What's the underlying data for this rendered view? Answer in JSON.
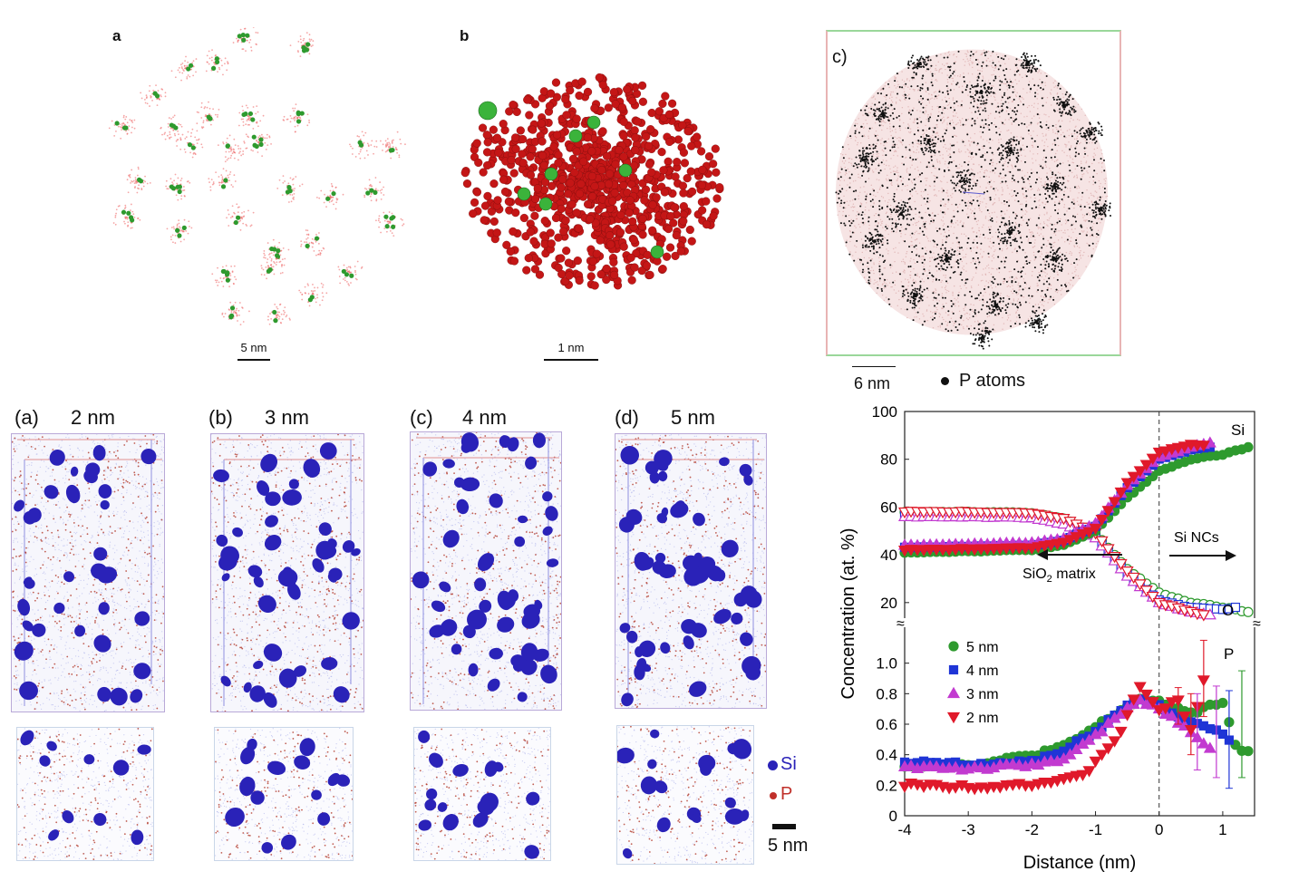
{
  "top_panels": {
    "a": {
      "letter": "a",
      "scale": "5 nm"
    },
    "b": {
      "letter": "b",
      "scale": "1 nm"
    },
    "c": {
      "letter": "c)",
      "scale": "6 nm",
      "legend": "P atoms"
    }
  },
  "tomograms": [
    {
      "letter": "(a)",
      "size": "2 nm"
    },
    {
      "letter": "(b)",
      "size": "3 nm"
    },
    {
      "letter": "(c)",
      "size": "4 nm"
    },
    {
      "letter": "(d)",
      "size": "5 nm"
    }
  ],
  "species_legend": {
    "si": "Si",
    "p": "P",
    "scale": "5 nm"
  },
  "colors": {
    "si": "#2a22b8",
    "p": "#c0302a",
    "green": "#2e9a2e",
    "magenta": "#c23ad0",
    "blue": "#1f35d6",
    "red": "#e0192a"
  },
  "chart_data": {
    "type": "scatter",
    "xlabel": "Distance (nm)",
    "ylabel": "Concentration (at. %)",
    "xlim": [
      -4,
      1.5
    ],
    "x_ticks": [
      "-4",
      "-3",
      "-2",
      "-1",
      "0",
      "1"
    ],
    "upper_ticks": [
      "20",
      "40",
      "60",
      "80",
      "100"
    ],
    "lower_ticks": [
      "0",
      "0.2",
      "0.4",
      "0.6",
      "0.8",
      "1.0"
    ],
    "upper_ylim": [
      15,
      100
    ],
    "lower_ylim": [
      0,
      1.2
    ],
    "annotations": {
      "si": "Si",
      "o": "O",
      "p": "P",
      "si_ncs": "Si NCs",
      "matrix": "SiO",
      "matrix_sub": "2",
      "matrix_tail": " matrix",
      "break": "≈"
    },
    "legend": [
      "5 nm",
      "4 nm",
      "3 nm",
      "2 nm"
    ],
    "si_series": [
      {
        "name": "5 nm",
        "x": [
          -4,
          -3,
          -2,
          -1.5,
          -1,
          -0.5,
          0,
          0.5,
          1,
          1.4
        ],
        "values": [
          41,
          41.5,
          42,
          44,
          50,
          64,
          75,
          80,
          82,
          85
        ]
      },
      {
        "name": "4 nm",
        "x": [
          -4,
          -3,
          -2,
          -1.5,
          -1,
          -0.5,
          0,
          0.5,
          0.8
        ],
        "values": [
          43,
          43.5,
          44,
          46,
          52,
          68,
          80,
          84,
          85
        ]
      },
      {
        "name": "3 nm",
        "x": [
          -4,
          -3,
          -2,
          -1.5,
          -1,
          -0.5,
          0,
          0.5,
          0.8
        ],
        "values": [
          44,
          44.5,
          45,
          47,
          53,
          69,
          81,
          85,
          87
        ]
      },
      {
        "name": "2 nm",
        "x": [
          -4,
          -3,
          -2,
          -1.5,
          -1,
          -0.5,
          0,
          0.5,
          0.7
        ],
        "values": [
          42,
          42.5,
          43,
          45,
          51,
          70,
          83,
          86,
          86
        ]
      }
    ],
    "o_series": [
      {
        "name": "5 nm",
        "x": [
          -4,
          -3,
          -2,
          -1.5,
          -1,
          -0.5,
          0,
          0.5,
          1,
          1.4
        ],
        "values": [
          58,
          58,
          57.5,
          55,
          49,
          34,
          24,
          20,
          18,
          16
        ]
      },
      {
        "name": "4 nm",
        "x": [
          -4,
          -3,
          -2,
          -1.5,
          -1,
          -0.5,
          0,
          0.5,
          1,
          1.2
        ],
        "values": [
          57,
          57,
          56.5,
          54,
          48,
          32,
          21,
          18,
          17,
          18
        ]
      },
      {
        "name": "3 nm",
        "x": [
          -4,
          -3,
          -2,
          -1.5,
          -1,
          -0.5,
          0,
          0.5,
          0.8
        ],
        "values": [
          56,
          56,
          55.5,
          53,
          47,
          31,
          20,
          16,
          15
        ]
      },
      {
        "name": "2 nm",
        "x": [
          -4,
          -3,
          -2,
          -1.5,
          -1,
          -0.5,
          0,
          0.5,
          0.7
        ],
        "values": [
          58,
          58,
          57.5,
          55,
          49,
          33,
          20,
          16,
          15
        ]
      }
    ],
    "p_series": [
      {
        "name": "5 nm",
        "x": [
          -4,
          -3.5,
          -3,
          -2.5,
          -2,
          -1.5,
          -1,
          -0.5,
          -0.3,
          0,
          0.3,
          0.6,
          1,
          1.2,
          1.4
        ],
        "values": [
          0.33,
          0.33,
          0.33,
          0.36,
          0.4,
          0.45,
          0.58,
          0.72,
          0.76,
          0.74,
          0.7,
          0.68,
          0.75,
          0.45,
          0.42
        ]
      },
      {
        "name": "4 nm",
        "x": [
          -4,
          -3.5,
          -3,
          -2.5,
          -2,
          -1.5,
          -1,
          -0.5,
          -0.3,
          0,
          0.3,
          0.6,
          0.9,
          1.1
        ],
        "values": [
          0.34,
          0.35,
          0.33,
          0.34,
          0.36,
          0.42,
          0.56,
          0.72,
          0.77,
          0.72,
          0.65,
          0.6,
          0.55,
          0.5
        ]
      },
      {
        "name": "3 nm",
        "x": [
          -4,
          -3.5,
          -3,
          -2.5,
          -2,
          -1.5,
          -1,
          -0.5,
          -0.3,
          0,
          0.3,
          0.6,
          0.8
        ],
        "values": [
          0.32,
          0.32,
          0.31,
          0.32,
          0.33,
          0.38,
          0.52,
          0.7,
          0.75,
          0.7,
          0.62,
          0.5,
          0.45
        ]
      },
      {
        "name": "2 nm",
        "x": [
          -4,
          -3.5,
          -3,
          -2.5,
          -2,
          -1.5,
          -1.2,
          -0.9,
          -0.6,
          -0.3,
          0,
          0.3,
          0.5,
          0.7
        ],
        "values": [
          0.2,
          0.2,
          0.19,
          0.2,
          0.21,
          0.23,
          0.26,
          0.4,
          0.55,
          0.85,
          0.7,
          0.75,
          0.55,
          0.9
        ]
      }
    ]
  }
}
